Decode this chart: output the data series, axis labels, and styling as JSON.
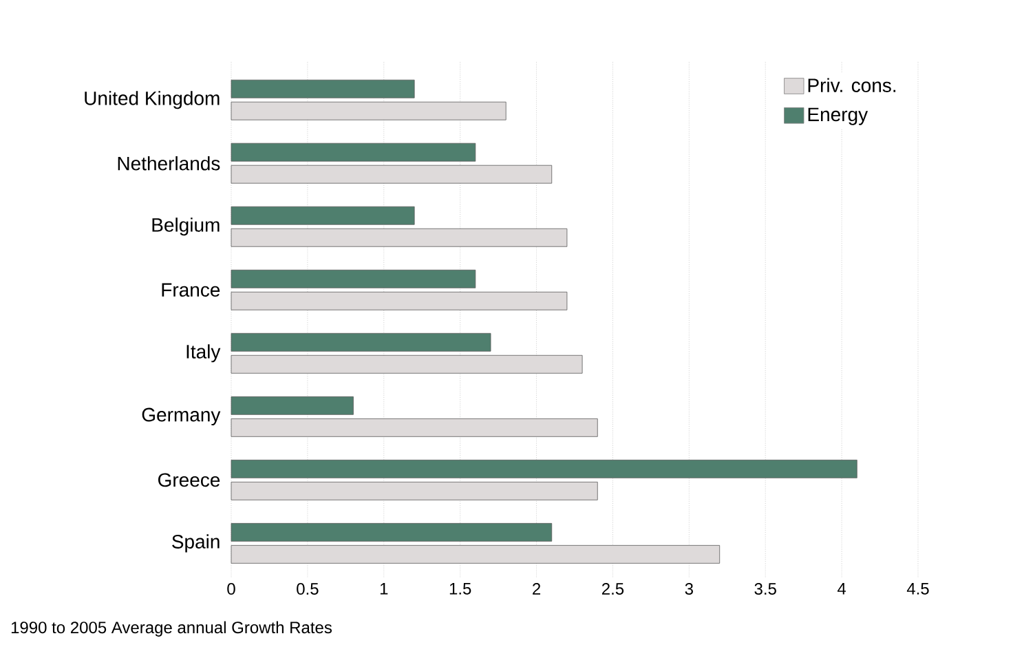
{
  "chart_data": {
    "type": "bar",
    "orientation": "horizontal",
    "categories": [
      "United Kingdom",
      "Netherlands",
      "Belgium",
      "France",
      "Italy",
      "Germany",
      "Greece",
      "Spain"
    ],
    "series": [
      {
        "name": "Priv. cons.",
        "color": "#dedada",
        "values": [
          1.8,
          2.1,
          2.2,
          2.2,
          2.3,
          2.4,
          2.4,
          3.2
        ]
      },
      {
        "name": "Energy",
        "color": "#4f7f6e",
        "values": [
          1.2,
          1.6,
          1.2,
          1.6,
          1.7,
          0.8,
          4.1,
          2.1
        ]
      }
    ],
    "xlim": [
      0,
      4.5
    ],
    "xticks": [
      0,
      0.5,
      1,
      1.5,
      2,
      2.5,
      3,
      3.5,
      4,
      4.5
    ],
    "grid": "x",
    "legend": "top right",
    "annotations": [
      "1990 to 2005  Average annual Growth Rates"
    ]
  }
}
